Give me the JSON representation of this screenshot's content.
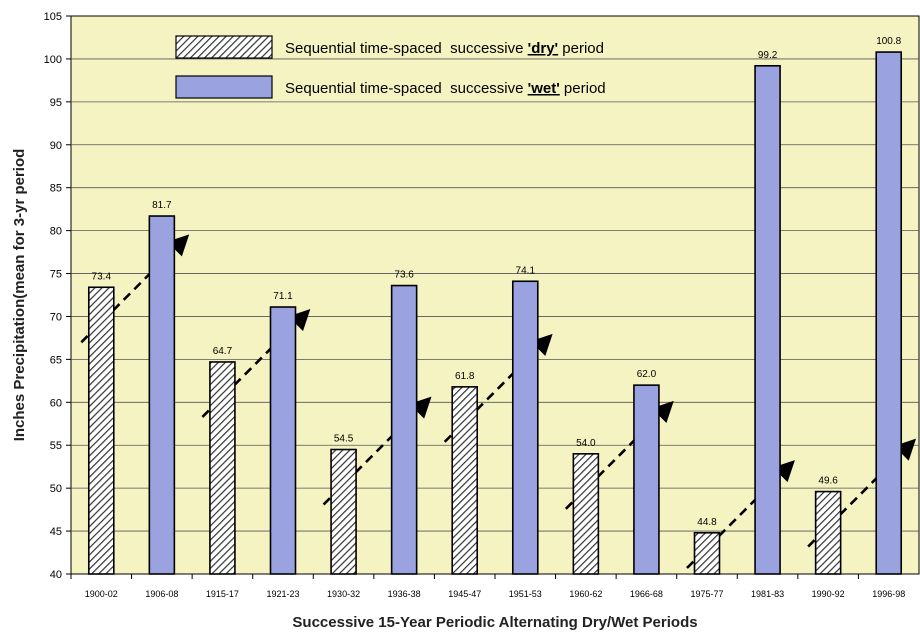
{
  "chart_data": {
    "type": "bar",
    "categories": [
      "1900-02",
      "1906-08",
      "1915-17",
      "1921-23",
      "1930-32",
      "1936-38",
      "1945-47",
      "1951-53",
      "1960-62",
      "1966-68",
      "1975-77",
      "1981-83",
      "1990-92",
      "1996-98"
    ],
    "values": [
      73.4,
      81.7,
      64.7,
      71.1,
      54.5,
      73.6,
      61.8,
      74.1,
      54.0,
      62.0,
      44.8,
      99.2,
      49.6,
      100.8
    ],
    "value_labels": [
      "73.4",
      "81.7",
      "64.7",
      "71.1",
      "54.5",
      "73.6",
      "61.8",
      "74.1",
      "54.0",
      "62.0",
      "44.8",
      "99.2",
      "49.6",
      "100.8"
    ],
    "series_kind": [
      "dry",
      "wet",
      "dry",
      "wet",
      "dry",
      "wet",
      "dry",
      "wet",
      "dry",
      "wet",
      "dry",
      "wet",
      "dry",
      "wet"
    ],
    "xlabel": "Successive 15-Year Periodic Alternating Dry/Wet Periods",
    "ylabel": "Inches Precipitation(mean for 3-yr period",
    "ylim": [
      40,
      105
    ],
    "yticks": [
      40,
      45,
      50,
      55,
      60,
      65,
      70,
      75,
      80,
      85,
      90,
      95,
      100,
      105
    ],
    "grid": "horizontal",
    "legend": {
      "placement": "top-left",
      "entries": [
        {
          "kind": "dry",
          "prefix": "Sequential time-spaced  successive ",
          "key": "'dry'",
          "suffix": " period"
        },
        {
          "kind": "wet",
          "prefix": "Sequential time-spaced  successive ",
          "key": "'wet'",
          "suffix": " period"
        }
      ]
    },
    "annotations": "dashed upward trend arrows from each dry period to the following wet period"
  },
  "colors": {
    "plot_background": "#f5f3c2",
    "wet_fill": "#9aa3e0",
    "dry_fill": "#ffffff",
    "dry_hatch": "#333333",
    "bar_stroke": "#000000",
    "grid": "#555555",
    "arrow": "#000000"
  }
}
